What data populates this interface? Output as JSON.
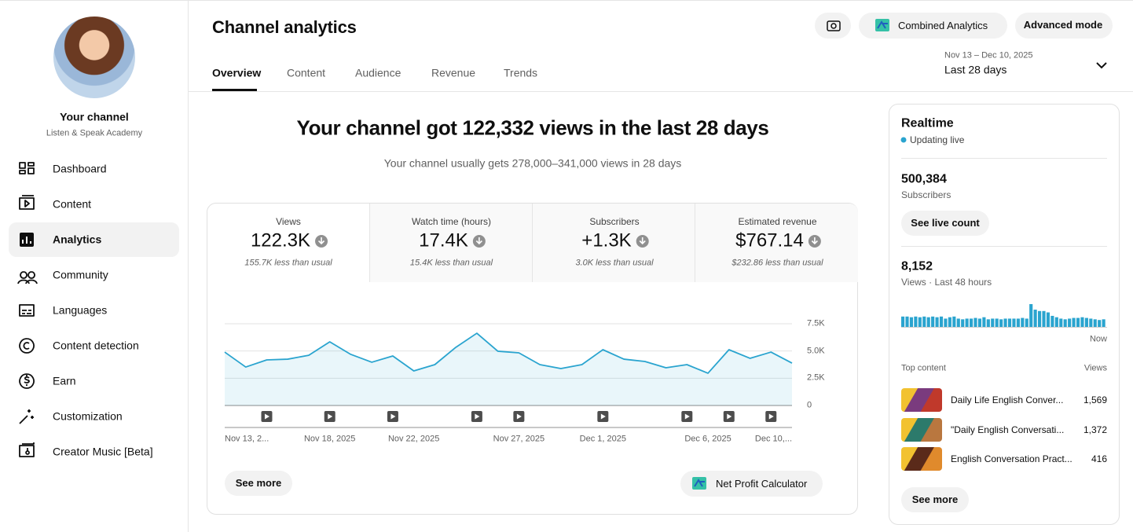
{
  "sidebar": {
    "channel_name": "Your channel",
    "channel_handle": "Listen & Speak Academy",
    "nav": [
      "Dashboard",
      "Content",
      "Analytics",
      "Community",
      "Languages",
      "Content detection",
      "Earn",
      "Customization",
      "Creator Music [Beta]"
    ]
  },
  "header": {
    "title": "Channel analytics",
    "buttons": [
      "Combined Analytics",
      "Advanced mode"
    ],
    "tabs": [
      "Overview",
      "Content",
      "Audience",
      "Revenue",
      "Trends"
    ],
    "date_range": "Nov 13 – Dec 10, 2025",
    "period": "Last 28 days"
  },
  "summary": {
    "headline": "Your channel got 122,332 views in the last 28 days",
    "subtitle": "Your channel usually gets 278,000–341,000 views in 28 days"
  },
  "metrics": [
    {
      "label": "Views",
      "value": "122.3K",
      "note": "155.7K less than usual"
    },
    {
      "label": "Watch time (hours)",
      "value": "17.4K",
      "note": "15.4K less than usual"
    },
    {
      "label": "Subscribers",
      "value": "+1.3K",
      "note": "3.0K less than usual"
    },
    {
      "label": "Estimated revenue",
      "value": "$767.14",
      "note": "$232.86 less than usual"
    }
  ],
  "chart_data": {
    "type": "area",
    "categories": [
      "Nov 13, 2...",
      null,
      null,
      null,
      null,
      "Nov 18, 2025",
      null,
      null,
      null,
      "Nov 22, 2025",
      null,
      null,
      null,
      null,
      "Nov 27, 2025",
      null,
      null,
      null,
      "Dec 1, 2025",
      null,
      null,
      null,
      null,
      "Dec 6, 2025",
      null,
      null,
      null,
      "Dec 10,..."
    ],
    "values": [
      4900,
      3530,
      4180,
      4250,
      4610,
      5840,
      4690,
      3970,
      4540,
      3170,
      3750,
      5340,
      6630,
      4980,
      4830,
      3750,
      3390,
      3750,
      5120,
      4250,
      4040,
      3460,
      3750,
      2960,
      5120,
      4330,
      4900,
      3890
    ],
    "color": "#2aa4cf",
    "ylim": [
      0,
      7500
    ],
    "yticks": [
      0,
      {
        "value": 2500,
        "label": "2.5K"
      },
      {
        "value": 5000,
        "label": "5.0K"
      },
      {
        "value": 7500,
        "label": "7.5K"
      }
    ],
    "grid": true,
    "videos_published_on": [
      2,
      5,
      8,
      12,
      14,
      18,
      22,
      24,
      26
    ]
  },
  "card_buttons": {
    "see_more": "See more",
    "net_profit": "Net Profit Calculator"
  },
  "realtime": {
    "title": "Realtime",
    "status": "Updating live",
    "subscribers": "500,384",
    "subscribers_label": "Subscribers",
    "live_count_button": "See live count",
    "views": "8,152",
    "views_label": "Views · Last 48 hours",
    "hourly_views": [
      150,
      150,
      140,
      150,
      140,
      150,
      140,
      150,
      140,
      150,
      120,
      140,
      150,
      120,
      110,
      120,
      120,
      130,
      120,
      140,
      110,
      120,
      120,
      110,
      120,
      120,
      120,
      120,
      130,
      120,
      330,
      250,
      230,
      230,
      210,
      160,
      140,
      120,
      110,
      120,
      130,
      130,
      140,
      130,
      120,
      110,
      100,
      110
    ],
    "color": "#2aa4cf",
    "now_label": "Now",
    "top_content_label": "Top content",
    "views_column": "Views",
    "top_content": [
      {
        "title": "Daily Life English Conver...",
        "views": "1,569"
      },
      {
        "title": "\"Daily English Conversati...",
        "views": "1,372"
      },
      {
        "title": "English Conversation Pract...",
        "views": "416"
      }
    ],
    "see_more": "See more"
  }
}
